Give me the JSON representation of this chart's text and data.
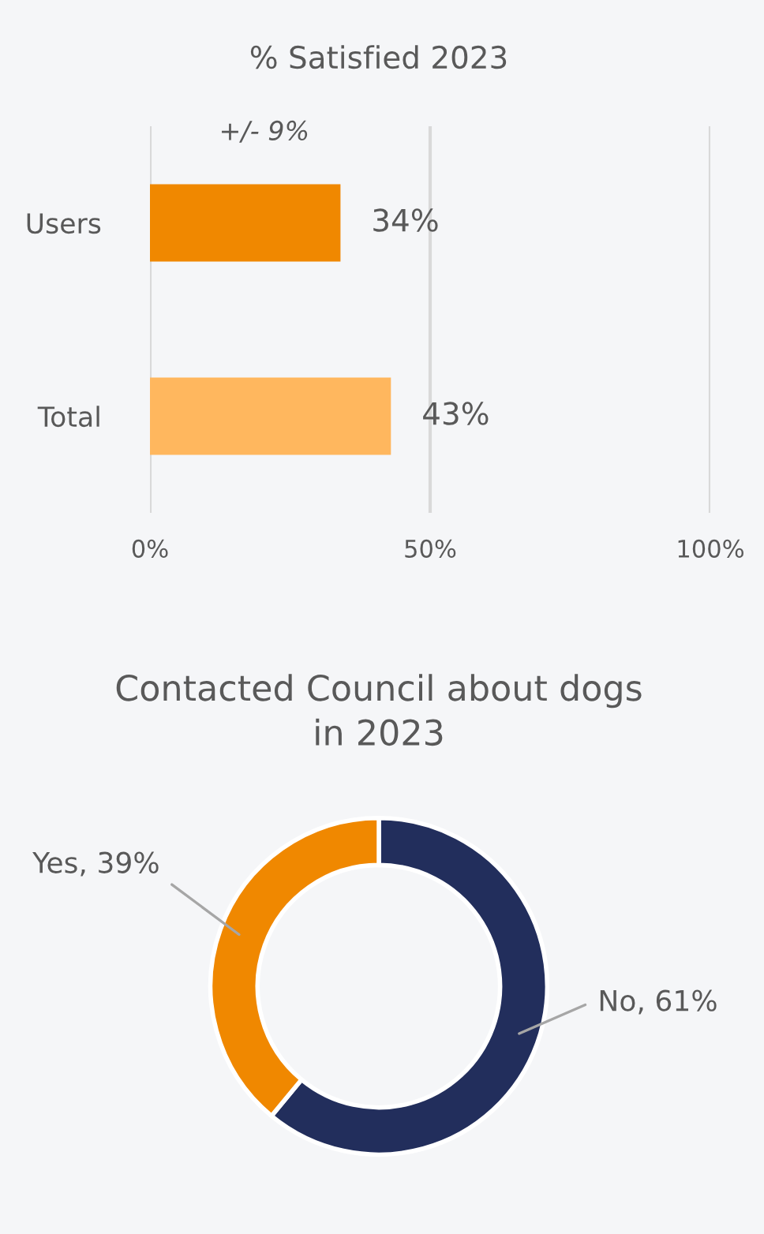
{
  "chart_data": [
    {
      "type": "bar",
      "orientation": "horizontal",
      "title": "% Satisfied 2023",
      "categories": [
        "Users",
        "Total"
      ],
      "values": [
        34,
        43
      ],
      "colors": [
        "#f08800",
        "#ffb75e"
      ],
      "value_labels": [
        "34%",
        "43%"
      ],
      "xlim": [
        0,
        100
      ],
      "xticks": [
        {
          "value": 0,
          "label": "0%"
        },
        {
          "value": 50,
          "label": "50%"
        },
        {
          "value": 100,
          "label": "100%"
        }
      ],
      "grid": "x",
      "annotations": [
        "+/- 9%"
      ]
    },
    {
      "type": "donut",
      "title": "Contacted Council about dogs\nin 2023",
      "categories": [
        "No",
        "Yes"
      ],
      "values": [
        61,
        39
      ],
      "colors": [
        "#222e5c",
        "#f08800"
      ],
      "value_labels": [
        "61%",
        "39%"
      ]
    }
  ]
}
